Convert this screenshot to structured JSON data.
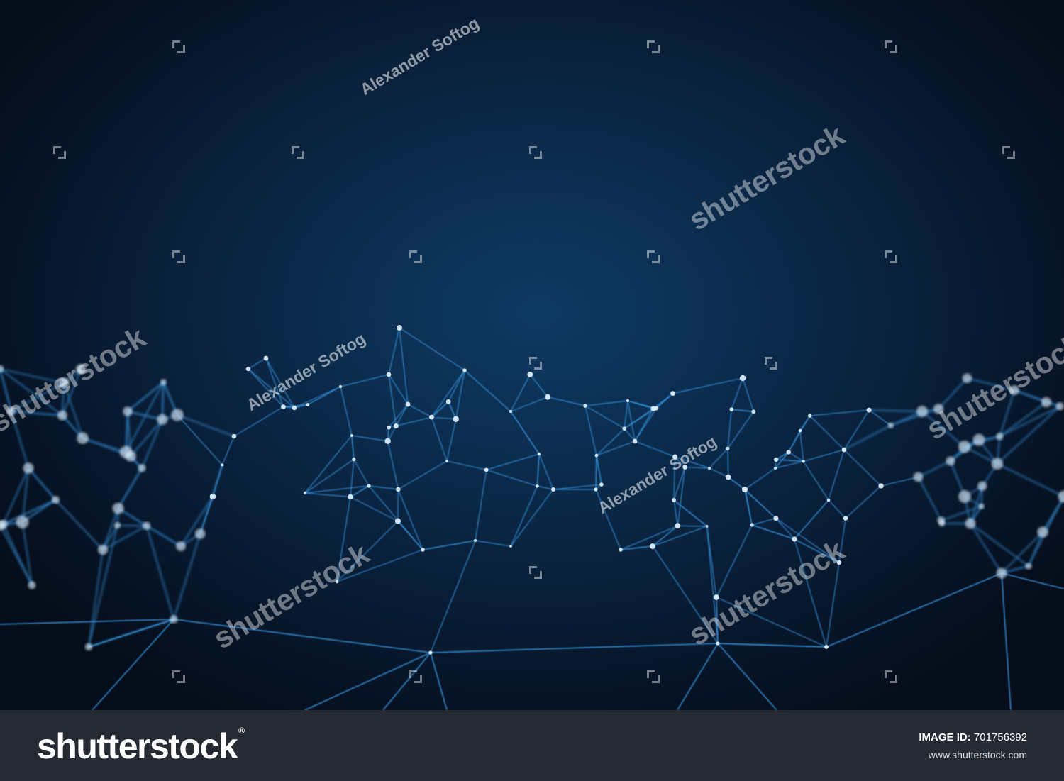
{
  "image": {
    "subject": "plexus-network",
    "background_colors": [
      "#0e3a63",
      "#081a31",
      "#050d1a"
    ],
    "line_color": "#3a9be8",
    "node_color": "#e6f4ff"
  },
  "watermarks": {
    "author": "Alexander Softog",
    "brand": "shutterstock"
  },
  "footer": {
    "logo_text": "shutterstock",
    "logo_registered": "®",
    "image_id_label": "IMAGE ID:",
    "image_id_value": "701756392",
    "url": "www.shutterstock.com"
  }
}
